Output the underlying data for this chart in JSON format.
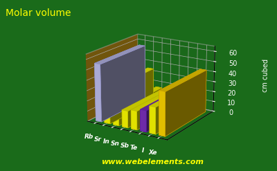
{
  "elements": [
    "Rb",
    "Sr",
    "In",
    "Sn",
    "Sb",
    "Te",
    "I",
    "Xe"
  ],
  "values": [
    55.9,
    33.7,
    15.7,
    16.3,
    18.19,
    20.5,
    25.74,
    42.0
  ],
  "bar_colors": [
    "#c0c0f0",
    "#ffff00",
    "#ffff00",
    "#ffff00",
    "#ffff00",
    "#7b2fbe",
    "#ffff00",
    "#ffd700"
  ],
  "bar_edge_colors": [
    "#9090c8",
    "#b8b800",
    "#b8b800",
    "#b8b800",
    "#b8b800",
    "#5a1a9e",
    "#b8b800",
    "#c8a000"
  ],
  "title": "Molar volume",
  "ylabel": "cm cubed",
  "ylim": [
    0,
    65
  ],
  "yticks": [
    0,
    10,
    20,
    30,
    40,
    50,
    60
  ],
  "bg_color": "#1a6b1a",
  "floor_rgba": [
    0.78,
    0.25,
    0.0,
    1.0
  ],
  "side_wall_rgba": [
    0.1,
    0.4,
    0.1,
    1.0
  ],
  "title_color": "#ffff00",
  "ylabel_color": "#ffffff",
  "tick_color": "#ffffff",
  "grid_color": "#aaaaaa",
  "website_text": "www.webelements.com",
  "website_color": "#ffff00",
  "elev": 18,
  "azim": -58
}
